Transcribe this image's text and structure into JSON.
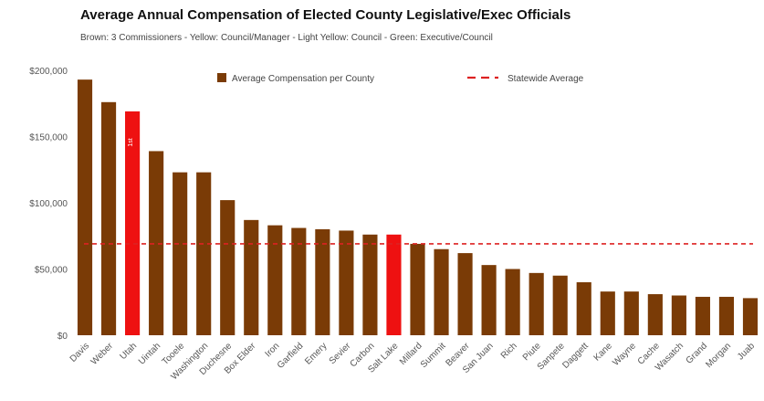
{
  "chart_data": {
    "type": "bar",
    "title": "Average Annual Compensation of Elected County Legislative/Exec Officials",
    "subtitle": "Brown: 3 Commissioners  -  Yellow: Council/Manager  -  Light Yellow: Council  -  Green: Executive/Council",
    "categories": [
      "Davis",
      "Weber",
      "Utah",
      "Uintah",
      "Tooele",
      "Washington",
      "Duchesne",
      "Box Elder",
      "Iron",
      "Garfield",
      "Emery",
      "Sevier",
      "Carbon",
      "Salt Lake",
      "Millard",
      "Summit",
      "Beaver",
      "San Juan",
      "Rich",
      "Piute",
      "Sanpete",
      "Daggett",
      "Kane",
      "Wayne",
      "Cache",
      "Wasatch",
      "Grand",
      "Morgan",
      "Juab"
    ],
    "series": [
      {
        "name": "Average Compensation per County",
        "values": [
          193000,
          176000,
          169000,
          139000,
          123000,
          123000,
          102000,
          87000,
          83000,
          81000,
          80000,
          79000,
          76000,
          76000,
          69000,
          65000,
          62000,
          53000,
          50000,
          47000,
          45000,
          40000,
          33000,
          33000,
          31000,
          30000,
          29000,
          29000,
          28000
        ],
        "color": "#7a3b06"
      },
      {
        "name": "Statewide Average",
        "type": "line",
        "value": 69000,
        "color": "#dd2222"
      }
    ],
    "highlight_categories": [
      "Utah",
      "Salt Lake"
    ],
    "highlight_color": "#ee1111",
    "bar_label": "1st",
    "ylim": [
      0,
      200000
    ],
    "yticks": [
      "$0",
      "$50,000",
      "$100,000",
      "$150,000",
      "$200,000"
    ],
    "ytick_values": [
      0,
      50000,
      100000,
      150000,
      200000
    ],
    "xlabel": "",
    "ylabel": "",
    "legend": "top-center",
    "grid": false
  }
}
